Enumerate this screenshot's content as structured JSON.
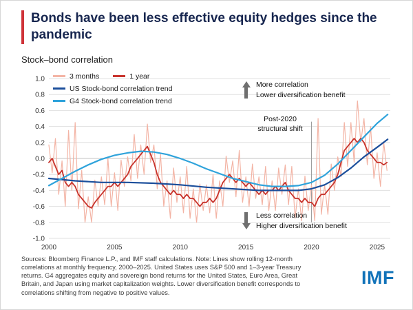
{
  "title": "Bonds have been less effective equity hedges since the pandemic",
  "subtitle": "Stock–bond correlation",
  "legend": [
    {
      "label": "3 months",
      "color": "#f3b4a5"
    },
    {
      "label": "1 year",
      "color": "#c8332c"
    },
    {
      "label": "US Stock-bond correlation trend",
      "color": "#1b4e9b"
    },
    {
      "label": "G4 Stock-bond correlation trend",
      "color": "#2fa3db"
    }
  ],
  "annotations": {
    "more": {
      "line1": "More correlation",
      "line2": "Lower diversification benefit"
    },
    "shift": {
      "line1": "Post-2020",
      "line2": "structural shift"
    },
    "less": {
      "line1": "Less correlation",
      "line2": "Higher diversification benefit"
    }
  },
  "footer": {
    "source": "Sources: Bloomberg Finance L.P., and IMF staff calculations. Note: Lines show rolling 12-month correlations at monthly frequency, 2000–2025. United States uses S&P 500 and 1–3-year Treasury returns. G4 aggregates equity and sovereign bond returns for the United States, Euro Area, Great Britain, and Japan using market capitalization weights. Lower diversification benefit corresponds to correlations shifting from negative to positive values.",
    "logo": "IMF"
  },
  "chart_data": {
    "type": "line",
    "title": "Stock–bond correlation",
    "x_range": [
      2000,
      2026
    ],
    "y_range": [
      -1.0,
      1.0
    ],
    "x_ticks": [
      2000,
      2005,
      2010,
      2015,
      2020,
      2025
    ],
    "y_ticks": [
      1.0,
      0.8,
      0.6,
      0.4,
      0.2,
      0.0,
      -0.2,
      -0.4,
      -0.6,
      -0.8,
      -1.0
    ],
    "grid": true,
    "legend_position": "top-left",
    "vline": {
      "x": 2020,
      "y_top": 0.46,
      "y_bottom": -0.8,
      "label": "Post-2020 structural shift"
    },
    "x_start": 2000,
    "x_step": 0.25,
    "series": [
      {
        "name": "3 months",
        "color": "#f3b4a5",
        "width": 1.2,
        "y": [
          0.17,
          -0.18,
          0.25,
          -0.45,
          -0.03,
          -0.6,
          0.35,
          -0.4,
          0.45,
          -0.63,
          -0.15,
          -0.8,
          -0.48,
          -0.8,
          -0.27,
          -0.6,
          -0.23,
          -0.58,
          0.0,
          -0.6,
          -0.18,
          -0.65,
          -0.02,
          -0.35,
          0.02,
          -0.28,
          0.3,
          -0.25,
          0.17,
          -0.2,
          0.43,
          -0.05,
          0.17,
          -0.38,
          0.05,
          -0.6,
          -0.28,
          -0.75,
          -0.12,
          -0.55,
          -0.23,
          -0.68,
          -0.1,
          -0.75,
          -0.38,
          -0.8,
          -0.32,
          -0.65,
          -0.33,
          -0.68,
          -0.2,
          -0.75,
          -0.28,
          -0.6,
          0.03,
          -0.3,
          -0.03,
          -0.48,
          0.1,
          -0.55,
          -0.23,
          -0.6,
          -0.07,
          -0.5,
          -0.23,
          -0.58,
          -0.1,
          -0.65,
          -0.28,
          -0.65,
          -0.12,
          -0.45,
          -0.08,
          -0.58,
          -0.1,
          -0.75,
          -0.38,
          -0.78,
          -0.22,
          -0.65,
          -0.33,
          -0.78,
          0.5,
          -0.7,
          -0.33,
          -0.7,
          -0.07,
          -0.4,
          0.02,
          -0.23,
          0.45,
          -0.1,
          0.45,
          -0.05,
          0.72,
          0.2,
          0.5,
          -0.08,
          0.4,
          -0.25,
          0.07,
          -0.35,
          0.2,
          -0.15
        ]
      },
      {
        "name": "1 year",
        "color": "#c8332c",
        "width": 1.8,
        "y": [
          -0.05,
          0.0,
          -0.1,
          -0.2,
          -0.15,
          -0.3,
          -0.35,
          -0.3,
          -0.35,
          -0.45,
          -0.5,
          -0.55,
          -0.6,
          -0.62,
          -0.55,
          -0.5,
          -0.45,
          -0.4,
          -0.35,
          -0.35,
          -0.3,
          -0.35,
          -0.3,
          -0.25,
          -0.2,
          -0.1,
          -0.05,
          0.0,
          0.05,
          0.1,
          0.15,
          0.05,
          -0.05,
          -0.2,
          -0.3,
          -0.35,
          -0.4,
          -0.45,
          -0.4,
          -0.45,
          -0.45,
          -0.5,
          -0.45,
          -0.5,
          -0.5,
          -0.55,
          -0.6,
          -0.55,
          -0.55,
          -0.5,
          -0.55,
          -0.5,
          -0.4,
          -0.3,
          -0.25,
          -0.2,
          -0.25,
          -0.3,
          -0.25,
          -0.3,
          -0.35,
          -0.3,
          -0.35,
          -0.4,
          -0.45,
          -0.4,
          -0.45,
          -0.4,
          -0.4,
          -0.35,
          -0.4,
          -0.35,
          -0.3,
          -0.4,
          -0.45,
          -0.5,
          -0.5,
          -0.55,
          -0.5,
          -0.55,
          -0.55,
          -0.6,
          -0.5,
          -0.45,
          -0.45,
          -0.4,
          -0.35,
          -0.3,
          -0.2,
          -0.05,
          0.1,
          0.15,
          0.2,
          0.25,
          0.2,
          0.25,
          0.2,
          0.1,
          0.05,
          0.0,
          -0.05,
          -0.05,
          -0.08,
          -0.05
        ]
      },
      {
        "name": "US Stock-bond correlation trend",
        "color": "#1b4e9b",
        "width": 2.2,
        "x": [
          2000,
          2002,
          2004,
          2006,
          2008,
          2010,
          2012,
          2014,
          2016,
          2018,
          2019,
          2020,
          2021,
          2022,
          2023,
          2024,
          2025,
          2025.8
        ],
        "y": [
          -0.25,
          -0.28,
          -0.3,
          -0.3,
          -0.31,
          -0.33,
          -0.36,
          -0.38,
          -0.4,
          -0.4,
          -0.4,
          -0.38,
          -0.33,
          -0.24,
          -0.12,
          0.02,
          0.14,
          0.24
        ]
      },
      {
        "name": "G4 Stock-bond correlation trend",
        "color": "#2fa3db",
        "width": 2.2,
        "x": [
          2000,
          2001,
          2002,
          2003,
          2004,
          2005,
          2006,
          2007,
          2008,
          2009,
          2010,
          2011,
          2012,
          2013,
          2014,
          2015,
          2016,
          2017,
          2018,
          2019,
          2020,
          2021,
          2022,
          2023,
          2024,
          2025,
          2025.8
        ],
        "y": [
          -0.34,
          -0.25,
          -0.16,
          -0.08,
          -0.01,
          0.04,
          0.07,
          0.09,
          0.08,
          0.05,
          0.0,
          -0.06,
          -0.13,
          -0.19,
          -0.25,
          -0.29,
          -0.33,
          -0.35,
          -0.35,
          -0.34,
          -0.3,
          -0.21,
          -0.07,
          0.1,
          0.27,
          0.44,
          0.55
        ]
      }
    ]
  }
}
